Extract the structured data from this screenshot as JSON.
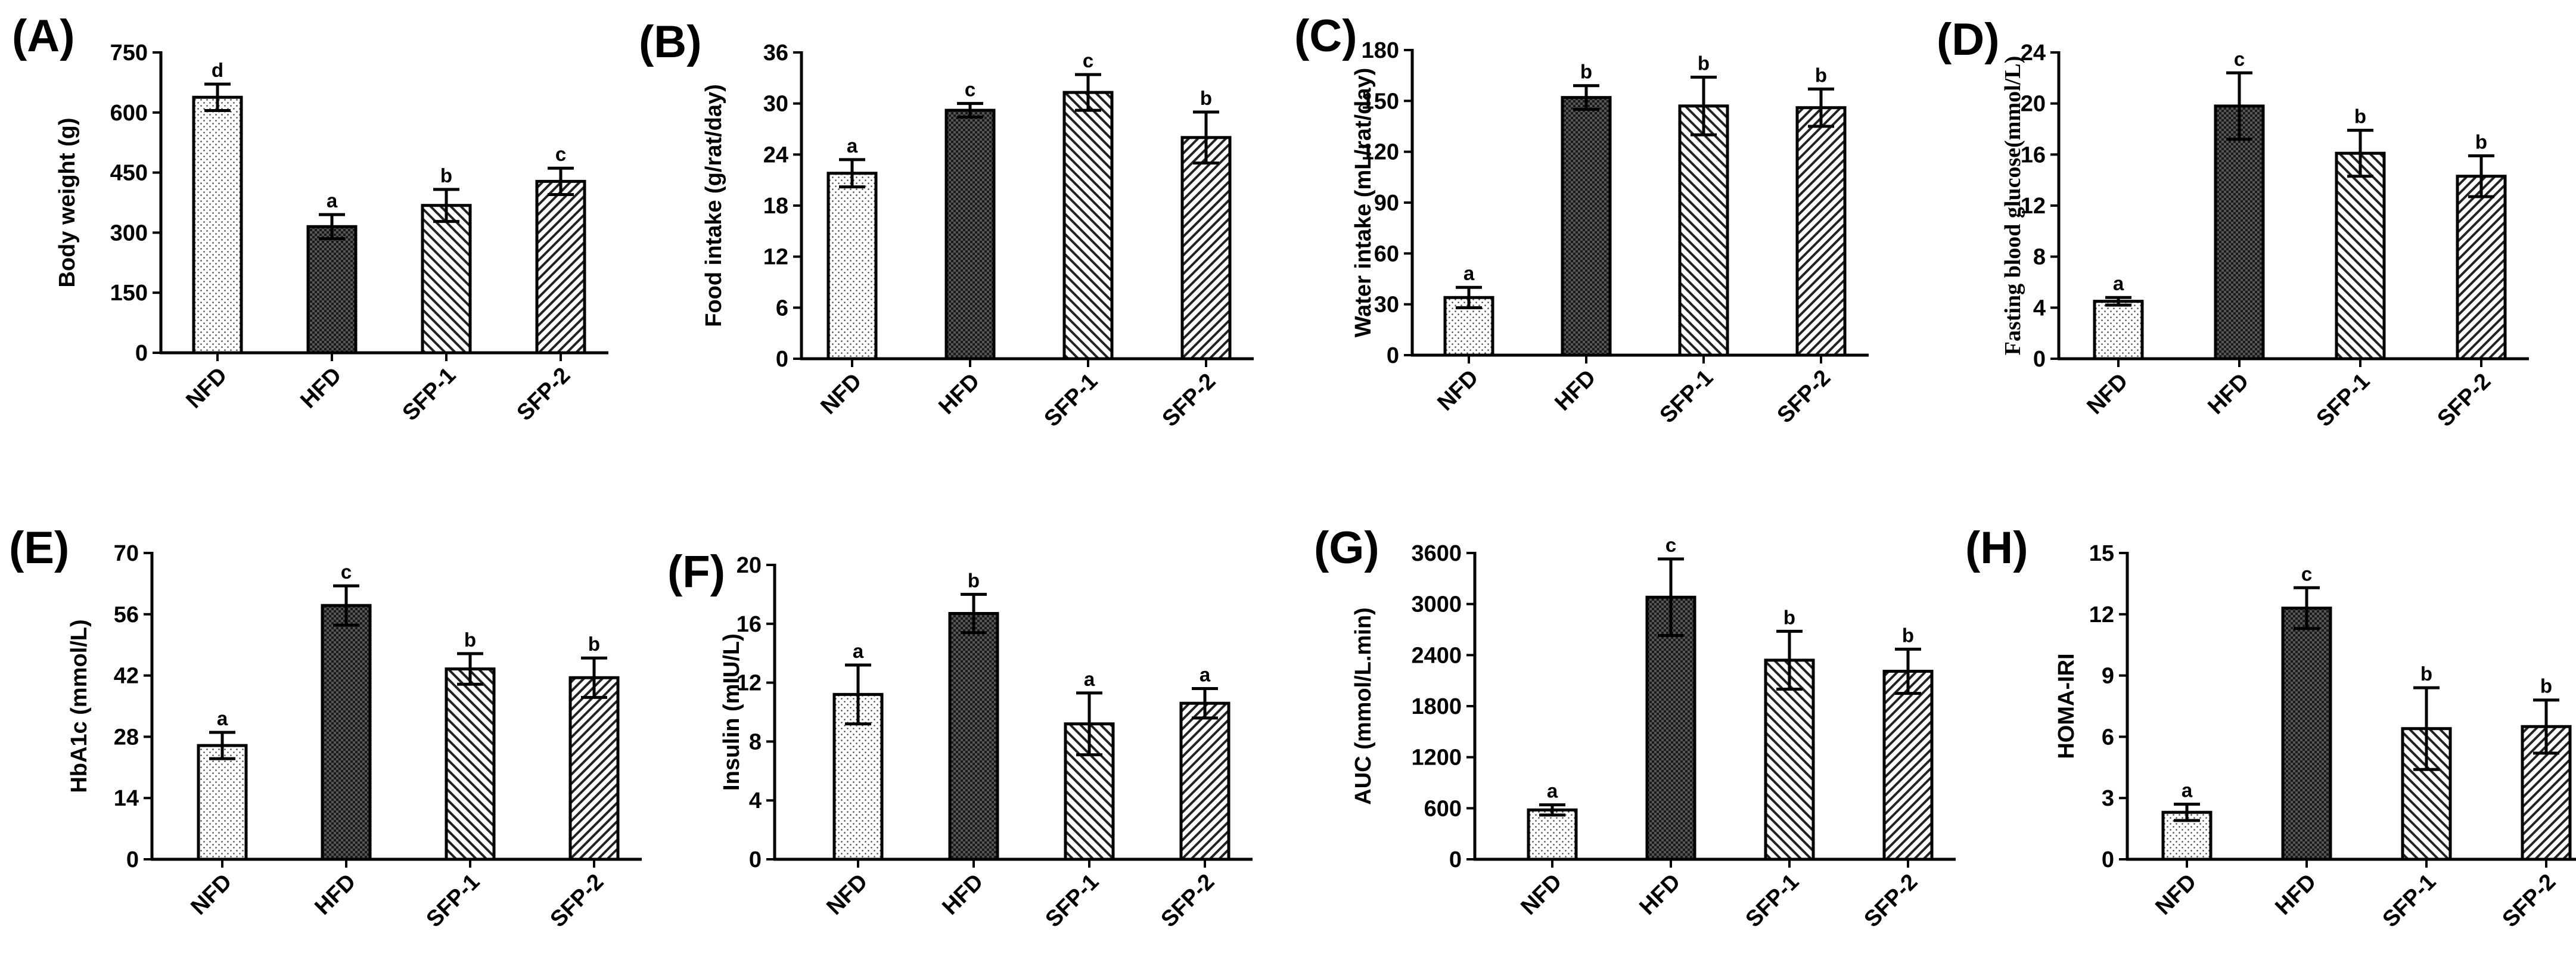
{
  "figure": {
    "categories": [
      "NFD",
      "HFD",
      "SFP-1",
      "SFP-2"
    ],
    "fills": [
      "dots",
      "checker",
      "diag-right",
      "diag-left"
    ],
    "colors": {
      "axis": "#000000",
      "background": "#ffffff",
      "bar_fill_base": "#ffffff",
      "pattern": "#222222"
    }
  },
  "chart_data": [
    {
      "type": "bar",
      "panel": "(A)",
      "title": "",
      "ylabel": "Body weight (g)",
      "ylim": [
        0,
        750
      ],
      "yticks": [
        0,
        150,
        300,
        450,
        600,
        750
      ],
      "categories": [
        "NFD",
        "HFD",
        "SFP-1",
        "SFP-2"
      ],
      "values": [
        638,
        315,
        368,
        428
      ],
      "errors": [
        33,
        30,
        40,
        33
      ],
      "significance": [
        "d",
        "a",
        "b",
        "c"
      ],
      "grid": false
    },
    {
      "type": "bar",
      "panel": "(B)",
      "title": "",
      "ylabel": "Food intake (g/rat/day)",
      "ylim": [
        0,
        36
      ],
      "yticks": [
        0,
        6,
        12,
        18,
        24,
        30,
        36
      ],
      "categories": [
        "NFD",
        "HFD",
        "SFP-1",
        "SFP-2"
      ],
      "values": [
        21.8,
        29.2,
        31.3,
        26.0
      ],
      "errors": [
        1.6,
        0.8,
        2.1,
        3.0
      ],
      "significance": [
        "a",
        "c",
        "c",
        "b"
      ],
      "grid": false
    },
    {
      "type": "bar",
      "panel": "(C)",
      "title": "",
      "ylabel": "Water intake (mL/rat/day)",
      "ylim": [
        0,
        180
      ],
      "yticks": [
        0,
        30,
        60,
        90,
        120,
        150,
        180
      ],
      "categories": [
        "NFD",
        "HFD",
        "SFP-1",
        "SFP-2"
      ],
      "values": [
        34,
        152,
        147,
        146
      ],
      "errors": [
        6,
        7,
        17,
        11
      ],
      "significance": [
        "a",
        "b",
        "b",
        "b"
      ],
      "grid": false
    },
    {
      "type": "bar",
      "panel": "(D)",
      "title": "",
      "ylabel": "Fasting blood glucose(mmol/L)",
      "ylabel_font": "serif",
      "ylim": [
        0,
        24
      ],
      "yticks": [
        0,
        4,
        8,
        12,
        16,
        20,
        24
      ],
      "categories": [
        "NFD",
        "HFD",
        "SFP-1",
        "SFP-2"
      ],
      "values": [
        4.5,
        19.8,
        16.1,
        14.3
      ],
      "errors": [
        0.3,
        2.6,
        1.8,
        1.6
      ],
      "significance": [
        "a",
        "c",
        "b",
        "b"
      ],
      "grid": false
    },
    {
      "type": "bar",
      "panel": "(E)",
      "title": "",
      "ylabel": "HbA1c (mmol/L)",
      "ylim": [
        0,
        70
      ],
      "yticks": [
        0,
        14,
        28,
        42,
        56,
        70
      ],
      "categories": [
        "NFD",
        "HFD",
        "SFP-1",
        "SFP-2"
      ],
      "values": [
        26,
        58,
        43.5,
        41.5
      ],
      "errors": [
        3,
        4.5,
        3.5,
        4.5
      ],
      "significance": [
        "a",
        "c",
        "b",
        "b"
      ],
      "grid": false
    },
    {
      "type": "bar",
      "panel": "(F)",
      "title": "",
      "ylabel": "Insulin (mIU/L)",
      "ylim": [
        0,
        20
      ],
      "yticks": [
        0,
        4,
        8,
        12,
        16,
        20
      ],
      "categories": [
        "NFD",
        "HFD",
        "SFP-1",
        "SFP-2"
      ],
      "values": [
        11.2,
        16.7,
        9.2,
        10.6
      ],
      "errors": [
        2.0,
        1.3,
        2.1,
        1.0
      ],
      "significance": [
        "a",
        "b",
        "a",
        "a"
      ],
      "grid": false
    },
    {
      "type": "bar",
      "panel": "(G)",
      "title": "",
      "ylabel": "AUC (mmol/L.min)",
      "ylim": [
        0,
        3600
      ],
      "yticks": [
        0,
        600,
        1200,
        1800,
        2400,
        3000,
        3600
      ],
      "categories": [
        "NFD",
        "HFD",
        "SFP-1",
        "SFP-2"
      ],
      "values": [
        580,
        3080,
        2340,
        2210
      ],
      "errors": [
        60,
        450,
        340,
        260
      ],
      "significance": [
        "a",
        "c",
        "b",
        "b"
      ],
      "grid": false
    },
    {
      "type": "bar",
      "panel": "(H)",
      "title": "",
      "ylabel": "HOMA-IRI",
      "ylim": [
        0,
        15
      ],
      "yticks": [
        0,
        3,
        6,
        9,
        12,
        15
      ],
      "categories": [
        "NFD",
        "HFD",
        "SFP-1",
        "SFP-2"
      ],
      "values": [
        2.3,
        12.3,
        6.4,
        6.5
      ],
      "errors": [
        0.4,
        1.0,
        2.0,
        1.3
      ],
      "significance": [
        "a",
        "c",
        "b",
        "b"
      ],
      "grid": false
    }
  ]
}
